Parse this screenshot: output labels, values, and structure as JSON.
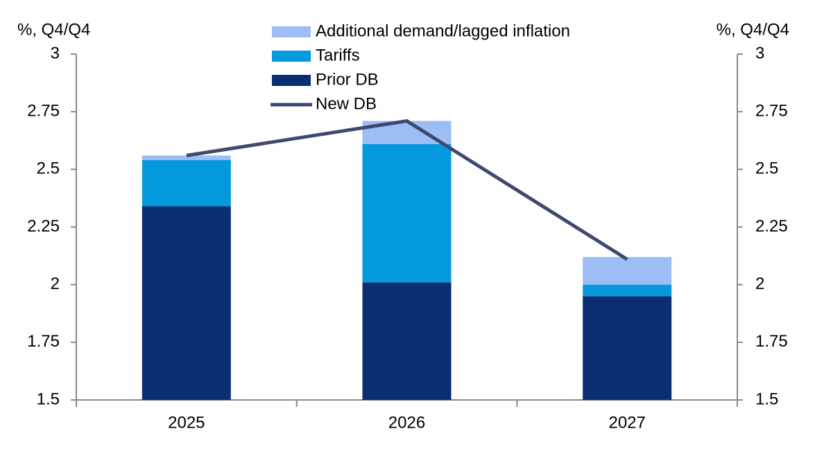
{
  "chart_data": {
    "type": "bar",
    "y_label": "%, Q4/Q4",
    "y2_label": "%, Q4/Q4",
    "categories": [
      "2025",
      "2026",
      "2027"
    ],
    "series": [
      {
        "name": "Additional demand/lagged inflation",
        "type": "bar",
        "color": "#9dbdf5",
        "values": [
          0.02,
          0.1,
          0.12
        ]
      },
      {
        "name": "Tariffs",
        "type": "bar",
        "color": "#0499dc",
        "values": [
          0.2,
          0.6,
          0.05
        ]
      },
      {
        "name": "Prior DB",
        "type": "bar",
        "color": "#0b2d72",
        "values": [
          2.34,
          2.01,
          1.95
        ]
      },
      {
        "name": "New DB",
        "type": "line",
        "color": "#3f4870",
        "values": [
          2.56,
          2.71,
          2.11
        ]
      }
    ],
    "ylim": [
      1.5,
      3
    ],
    "yticks": [
      1.5,
      1.75,
      2,
      2.25,
      2.5,
      2.75,
      3
    ],
    "y2lim": [
      1.5,
      3
    ],
    "y2ticks": [
      1.5,
      1.75,
      2,
      2.25,
      2.5,
      2.75,
      3
    ]
  }
}
